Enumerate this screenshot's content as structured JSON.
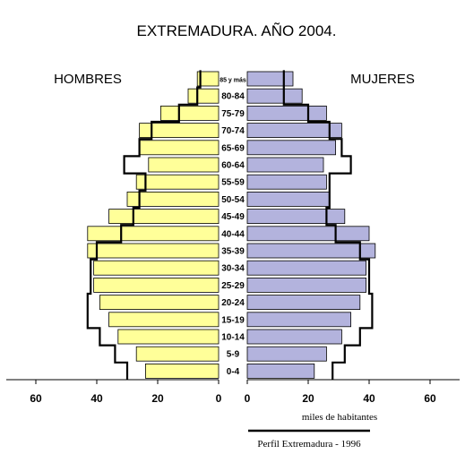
{
  "chart_data": {
    "type": "bar",
    "title": "EXTREMADURA. AÑO 2004.",
    "left_label": "HOMBRES",
    "right_label": "MUJERES",
    "unit_label": "miles de  habitantes",
    "legend_label": "Perfil Extremadura - 1996",
    "categories": [
      "0-4",
      "5-9",
      "10-14",
      "15-19",
      "20-24",
      "25-29",
      "30-34",
      "35-39",
      "40-44",
      "45-49",
      "50-54",
      "55-59",
      "60-64",
      "65-69",
      "70-74",
      "75-79",
      "80-84",
      "85 y más"
    ],
    "x_ticks_left": [
      "60",
      "40",
      "20",
      "0"
    ],
    "x_ticks_right": [
      "0",
      "20",
      "40",
      "60"
    ],
    "tick_values": [
      0,
      20,
      40,
      60
    ],
    "xlim": [
      0,
      70
    ],
    "series": [
      {
        "name": "HOMBRES",
        "color": "#ffff99",
        "values": [
          24,
          27,
          33,
          36,
          39,
          41,
          41,
          43,
          43,
          36,
          30,
          27,
          23,
          26,
          26,
          19,
          10,
          7
        ]
      },
      {
        "name": "MUJERES",
        "color": "#b3b3dd",
        "values": [
          22,
          26,
          31,
          34,
          37,
          39,
          39,
          42,
          40,
          32,
          27,
          26,
          25,
          29,
          31,
          26,
          18,
          15
        ]
      }
    ],
    "profile_1996": {
      "name": "Perfil Extremadura - 1996",
      "hombres": [
        30,
        34,
        39,
        43,
        43,
        42,
        42,
        40,
        32,
        28,
        26,
        24,
        31,
        26,
        22,
        13,
        7,
        6
      ],
      "mujeres": [
        28,
        32,
        37,
        41,
        41,
        40,
        40,
        37,
        29,
        26,
        27,
        27,
        34,
        31,
        27,
        20,
        12,
        12
      ]
    }
  }
}
